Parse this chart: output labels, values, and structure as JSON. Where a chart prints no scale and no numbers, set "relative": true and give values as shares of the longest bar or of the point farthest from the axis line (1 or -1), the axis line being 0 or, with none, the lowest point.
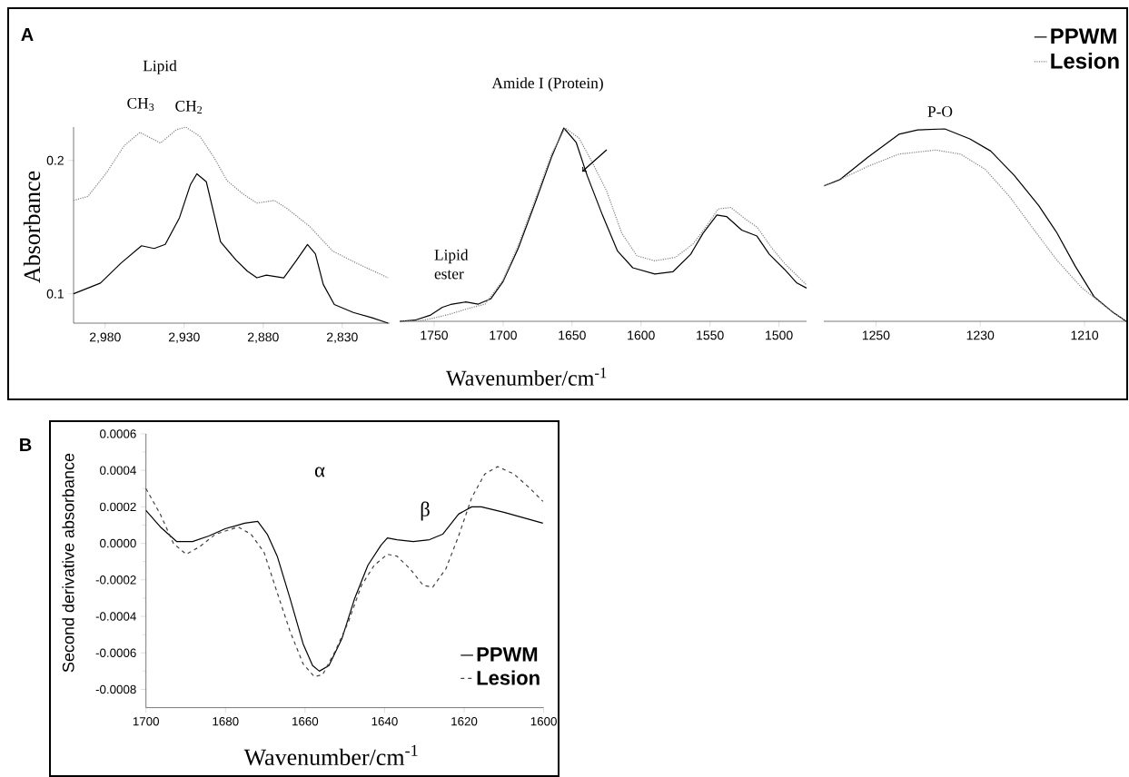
{
  "chart_data": [
    {
      "type": "line",
      "title": "A",
      "ylabel": "Absorbance",
      "annotations": [
        "Lipid",
        "CH$_{3}$",
        "CH$_{2}$"
      ],
      "xlim": [
        3000,
        2800
      ],
      "xticks": [
        {
          "value": 2980,
          "label": "2,980"
        },
        {
          "value": 2930,
          "label": "2,930"
        },
        {
          "value": 2880,
          "label": "2,880"
        },
        {
          "value": 2830,
          "label": "2,830"
        }
      ],
      "ylim": [
        0.078,
        0.225
      ],
      "yticks": [
        0.1,
        0.2
      ],
      "series": [
        {
          "color": "#000000",
          "line_style": "solid",
          "x": [
            3000,
            2983,
            2970,
            2957,
            2949,
            2942,
            2933,
            2926,
            2922,
            2916,
            2911,
            2907,
            2897,
            2890,
            2884,
            2878,
            2867,
            2859,
            2852,
            2847,
            2842,
            2835,
            2823,
            2811,
            2801
          ],
          "values": [
            0.1,
            0.108,
            0.123,
            0.136,
            0.134,
            0.137,
            0.157,
            0.182,
            0.19,
            0.184,
            0.159,
            0.139,
            0.125,
            0.117,
            0.112,
            0.114,
            0.112,
            0.125,
            0.137,
            0.13,
            0.107,
            0.092,
            0.086,
            0.082,
            0.078
          ]
        },
        {
          "color": "#808080",
          "line_style": "dotted",
          "x": [
            3000,
            2991,
            2979,
            2968,
            2958,
            2945,
            2935,
            2929,
            2920,
            2911,
            2903,
            2893,
            2884,
            2873,
            2865,
            2851,
            2836,
            2821,
            2801
          ],
          "values": [
            0.17,
            0.173,
            0.191,
            0.211,
            0.221,
            0.213,
            0.223,
            0.225,
            0.218,
            0.202,
            0.185,
            0.175,
            0.168,
            0.17,
            0.164,
            0.151,
            0.132,
            0.123,
            0.112
          ]
        }
      ]
    },
    {
      "type": "line",
      "xlabel": "Wavenumber/cm$^{-1}$",
      "annotations": [
        "Amide I (Protein)",
        "Lipid ester"
      ],
      "relative": true,
      "tick_labels": "x",
      "xlim": [
        1775,
        1480
      ],
      "xticks": [
        1750,
        1700,
        1650,
        1600,
        1550,
        1500
      ],
      "series": [
        {
          "color": "#000000",
          "line_style": "solid",
          "x": [
            1775,
            1764,
            1753,
            1744,
            1738,
            1727,
            1718,
            1709,
            1700,
            1689,
            1676,
            1665,
            1656,
            1647,
            1639,
            1628,
            1617,
            1606,
            1590,
            1577,
            1564,
            1555,
            1545,
            1538,
            1527,
            1516,
            1507,
            1496,
            1487,
            1480
          ],
          "values": [
            0,
            0.006,
            0.031,
            0.073,
            0.087,
            0.1,
            0.089,
            0.116,
            0.206,
            0.378,
            0.628,
            0.847,
            1,
            0.925,
            0.753,
            0.55,
            0.363,
            0.277,
            0.245,
            0.256,
            0.347,
            0.456,
            0.55,
            0.542,
            0.472,
            0.441,
            0.347,
            0.269,
            0.198,
            0.172
          ]
        },
        {
          "color": "#808080",
          "line_style": "dotted",
          "x": [
            1775,
            1760,
            1749,
            1738,
            1724,
            1713,
            1700,
            1689,
            1676,
            1665,
            1655,
            1645,
            1636,
            1625,
            1614,
            1603,
            1590,
            1575,
            1562,
            1553,
            1544,
            1535,
            1524,
            1516,
            1505,
            1496,
            1480
          ],
          "values": [
            0,
            0.003,
            0.019,
            0.038,
            0.069,
            0.089,
            0.214,
            0.394,
            0.644,
            0.863,
            1,
            0.948,
            0.831,
            0.675,
            0.456,
            0.339,
            0.313,
            0.331,
            0.402,
            0.488,
            0.581,
            0.589,
            0.527,
            0.488,
            0.378,
            0.3,
            0.188
          ]
        }
      ]
    },
    {
      "type": "line",
      "annotations": [
        "P-O"
      ],
      "relative": true,
      "tick_labels": "x",
      "legend": "top right",
      "xlim": [
        1260,
        1202
      ],
      "xticks": [
        1250,
        1230,
        1210
      ],
      "series": [
        {
          "name": "PPWM",
          "color": "#000000",
          "line_style": "solid",
          "x": [
            1260,
            1257,
            1251.5,
            1245.6,
            1242,
            1236.8,
            1232,
            1228,
            1223.5,
            1218.8,
            1215.3,
            1211.8,
            1208.2,
            1204.7,
            1202
          ],
          "values": [
            0.704,
            0.735,
            0.854,
            0.972,
            0.995,
            1,
            0.948,
            0.885,
            0.759,
            0.602,
            0.46,
            0.287,
            0.129,
            0.05,
            0
          ]
        },
        {
          "name": "Lesion",
          "color": "#808080",
          "line_style": "dotted",
          "x": [
            1260,
            1257,
            1251.5,
            1245.6,
            1238.5,
            1233.8,
            1229.1,
            1224.4,
            1219.7,
            1215.3,
            1210.6,
            1205.9,
            1202
          ],
          "values": [
            0.704,
            0.735,
            0.806,
            0.869,
            0.89,
            0.869,
            0.791,
            0.649,
            0.476,
            0.318,
            0.176,
            0.074,
            0
          ]
        }
      ]
    },
    {
      "type": "line",
      "title": "B",
      "xlabel": "Wavenumber/cm$^{-1}$",
      "ylabel": "Second derivative absorbance",
      "annotations": [
        "α",
        "β"
      ],
      "legend": "bottom right",
      "xlim": [
        1700,
        1600
      ],
      "xticks": [
        1700,
        1680,
        1660,
        1640,
        1620,
        1600
      ],
      "ylim": [
        -0.0009,
        0.0006
      ],
      "yticks": [
        {
          "value": 0.0006,
          "label": "0.0006"
        },
        {
          "value": 0.0004,
          "label": "0.0004"
        },
        {
          "value": 0.0002,
          "label": "0.0002"
        },
        {
          "value": 0,
          "label": "0.0000"
        },
        {
          "value": -0.0002,
          "label": "-0.0002"
        },
        {
          "value": -0.0004,
          "label": "-0.0004"
        },
        {
          "value": -0.0006,
          "label": "-0.0006"
        },
        {
          "value": -0.0008,
          "label": "-0.0008"
        }
      ],
      "series": [
        {
          "name": "PPWM",
          "color": "#000000",
          "line_style": "solid",
          "x": [
            1700,
            1696.4,
            1692.3,
            1688.3,
            1684.2,
            1680.1,
            1675.2,
            1671.9,
            1669.5,
            1667,
            1663.8,
            1660.5,
            1658.1,
            1656.4,
            1654,
            1650.7,
            1647.5,
            1644.2,
            1640.9,
            1639.3,
            1636.9,
            1632.8,
            1628.7,
            1625.4,
            1621.4,
            1618.1,
            1615.7,
            1610,
            1605.1,
            1600.2
          ],
          "values": [
            0.00018,
            9e-05,
            1e-05,
            1e-05,
            4e-05,
            8e-05,
            0.00011,
            0.00012,
            5e-05,
            -7e-05,
            -0.0003,
            -0.00055,
            -0.00067,
            -0.0007,
            -0.00067,
            -0.00052,
            -0.0003,
            -0.00012,
            -1e-05,
            3e-05,
            2e-05,
            1e-05,
            2e-05,
            5e-05,
            0.00016,
            0.0002,
            0.0002,
            0.00017,
            0.00014,
            0.00011
          ]
        },
        {
          "name": "Lesion",
          "color": "#404040",
          "line_style": "dashed",
          "x": [
            1700,
            1696.4,
            1693.1,
            1689.9,
            1686.6,
            1682.5,
            1676.8,
            1673.6,
            1670.3,
            1667,
            1663.8,
            1660.5,
            1657.7,
            1655.6,
            1652.4,
            1649.1,
            1645.8,
            1642.6,
            1639.3,
            1636.9,
            1633.6,
            1630.3,
            1627.9,
            1624.6,
            1621.4,
            1618.1,
            1614.8,
            1611.6,
            1607.5,
            1603.4,
            1600.2
          ],
          "values": [
            0.0003,
            0.00016,
            0,
            -6e-05,
            -2e-05,
            5e-05,
            9e-05,
            5e-05,
            -5e-05,
            -0.00027,
            -0.00048,
            -0.00066,
            -0.00073,
            -0.00072,
            -0.00059,
            -0.00043,
            -0.00023,
            -0.00012,
            -6e-05,
            -7e-05,
            -0.00014,
            -0.00023,
            -0.00024,
            -0.00014,
            4e-05,
            0.00025,
            0.00038,
            0.00042,
            0.00038,
            0.0003,
            0.00023
          ]
        }
      ]
    }
  ]
}
